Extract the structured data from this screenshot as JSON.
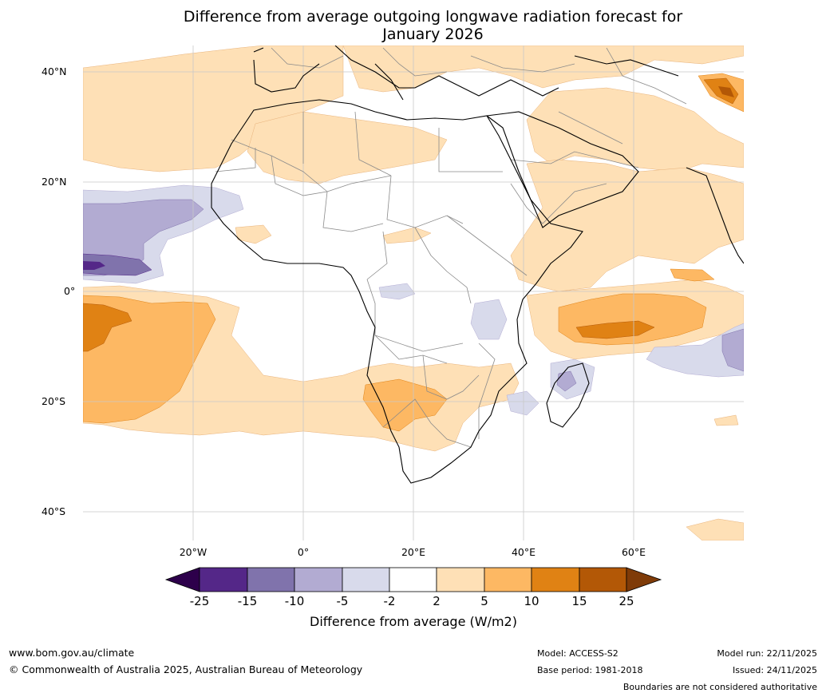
{
  "title_line1": "Difference from average outgoing longwave radiation forecast for",
  "title_line2": "January 2026",
  "lat_labels": [
    "40°N",
    "20°N",
    "0°",
    "20°S",
    "40°S"
  ],
  "lon_labels": [
    "20°W",
    "0°",
    "20°E",
    "40°E",
    "60°E"
  ],
  "colorbar": {
    "label": "Difference from average (W/m2)",
    "ticks": [
      "-25",
      "-15",
      "-10",
      "-5",
      "-2",
      "2",
      "5",
      "10",
      "15",
      "25"
    ],
    "colors": {
      "below_min": "#2d004b",
      "n25_n15": "#542788",
      "n15_n10": "#8073ac",
      "n10_n5": "#b2abd2",
      "n5_n2": "#d8daeb",
      "n2_p2": "#ffffff",
      "p2_p5": "#fee0b6",
      "p5_p10": "#fdb863",
      "p10_p15": "#e08214",
      "p15_p25": "#b35806",
      "above_max": "#7f3b08"
    }
  },
  "footer": {
    "website": "www.bom.gov.au/climate",
    "copyright": "© Commonwealth of Australia 2025, Australian Bureau of Meteorology",
    "model": "Model: ACCESS-S2",
    "base_period": "Base period: 1981-2018",
    "model_run": "Model run: 22/11/2025",
    "issued": "Issued: 24/11/2025",
    "disclaimer": "Boundaries are not considered authoritative"
  }
}
